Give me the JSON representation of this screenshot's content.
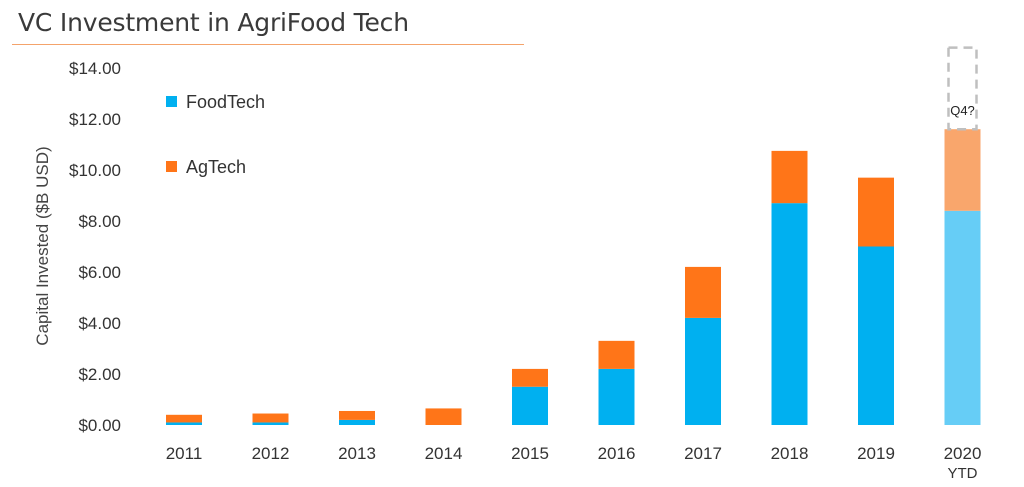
{
  "colors": {
    "foodtech": "#00b0f0",
    "agtech": "#ff7518",
    "foodtech_estimate": "#66cdf6",
    "agtech_estimate": "#f9a66c",
    "title_rule": "#f4a36b",
    "placeholder_border": "#bfbfbf"
  },
  "chart_data": {
    "type": "bar",
    "stacked": true,
    "title": "VC Investment in AgriFood Tech",
    "ylabel": "Capital Invested ($B USD)",
    "xlabel": "",
    "ylim": [
      0,
      14
    ],
    "yticks": [
      0,
      2,
      4,
      6,
      8,
      10,
      12,
      14
    ],
    "ytick_labels": [
      "$0.00",
      "$2.00",
      "$4.00",
      "$6.00",
      "$8.00",
      "$10.00",
      "$12.00",
      "$14.00"
    ],
    "categories": [
      "2011",
      "2012",
      "2013",
      "2014",
      "2015",
      "2016",
      "2017",
      "2018",
      "2019",
      "2020"
    ],
    "category_sublabels": [
      "",
      "",
      "",
      "",
      "",
      "",
      "",
      "",
      "",
      "YTD"
    ],
    "legend_position": "top-left",
    "grid": false,
    "series": [
      {
        "name": "FoodTech",
        "values": [
          0.1,
          0.1,
          0.2,
          0.0,
          1.5,
          2.2,
          4.2,
          8.7,
          7.0,
          8.4
        ]
      },
      {
        "name": "AgTech",
        "values": [
          0.3,
          0.35,
          0.35,
          0.65,
          0.7,
          1.1,
          2.0,
          2.05,
          2.7,
          3.2
        ]
      }
    ],
    "annotations": [
      {
        "category": "2020",
        "text": "Q4?",
        "placeholder_top": 14.8
      }
    ]
  }
}
